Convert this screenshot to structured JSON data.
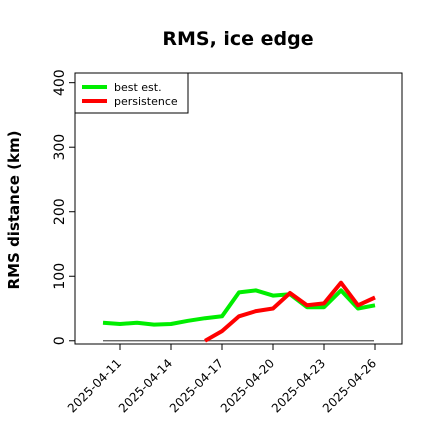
{
  "chart_data": {
    "type": "line",
    "title": "RMS, ice edge",
    "xlabel": "",
    "ylabel": "RMS distance (km)",
    "ylim": [
      -5,
      415
    ],
    "y_ticks": [
      0,
      100,
      200,
      300,
      400
    ],
    "x": [
      "2025-04-10",
      "2025-04-11",
      "2025-04-12",
      "2025-04-13",
      "2025-04-14",
      "2025-04-15",
      "2025-04-16",
      "2025-04-17",
      "2025-04-18",
      "2025-04-19",
      "2025-04-20",
      "2025-04-21",
      "2025-04-22",
      "2025-04-23",
      "2025-04-24",
      "2025-04-25",
      "2025-04-26"
    ],
    "x_ticks": [
      "2025-04-11",
      "2025-04-14",
      "2025-04-17",
      "2025-04-20",
      "2025-04-23",
      "2025-04-26"
    ],
    "reference_line": 0,
    "legend_position": "top-left",
    "grid": false,
    "series": [
      {
        "name": "best est.",
        "color": "#00ee00",
        "values": [
          28,
          26,
          28,
          25,
          26,
          31,
          35,
          38,
          75,
          78,
          70,
          72,
          52,
          52,
          78,
          50,
          55
        ]
      },
      {
        "name": "persistence",
        "color": "#ff0000",
        "values": [
          null,
          null,
          null,
          null,
          null,
          null,
          0,
          15,
          38,
          46,
          50,
          74,
          55,
          58,
          90,
          55,
          67
        ]
      }
    ]
  }
}
